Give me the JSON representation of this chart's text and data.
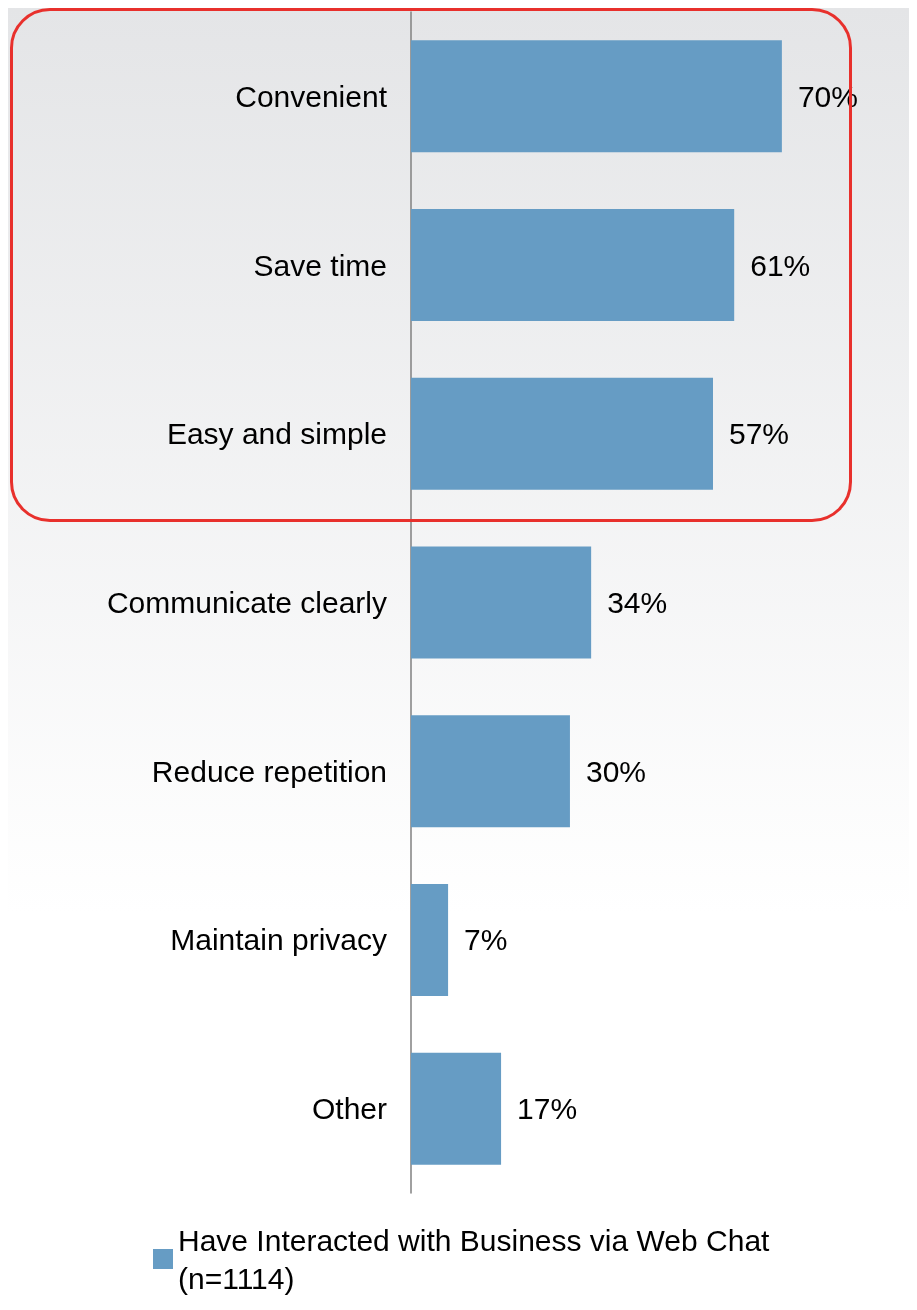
{
  "chart_data": {
    "type": "bar",
    "orientation": "horizontal",
    "categories": [
      "Convenient",
      "Save time",
      "Easy and simple",
      "Communicate clearly",
      "Reduce repetition",
      "Maintain privacy",
      "Other"
    ],
    "series": [
      {
        "name": "Have Interacted with Business via Web Chat (n=1114)",
        "color": "#669cc4",
        "values": [
          70,
          61,
          57,
          34,
          30,
          7,
          17
        ],
        "value_labels": [
          "70%",
          "61%",
          "57%",
          "34%",
          "30%",
          "7%",
          "17%"
        ]
      }
    ],
    "legend": "bottom"
  }
}
